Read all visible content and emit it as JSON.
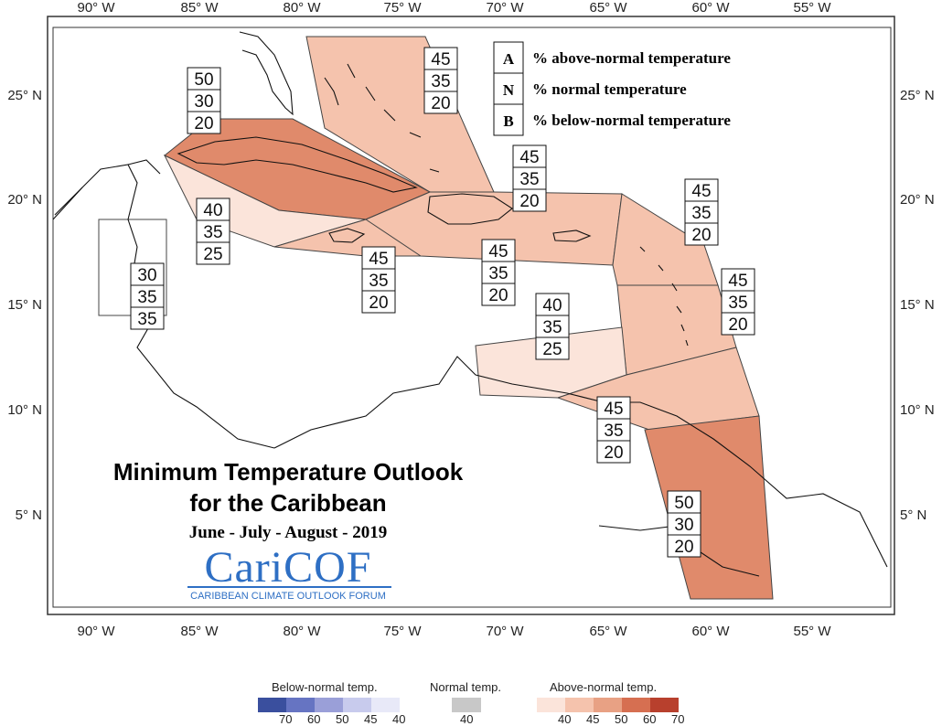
{
  "title_line1": "Minimum Temperature Outlook",
  "title_line2": "for the Caribbean",
  "subtitle": "June - July - August - 2019",
  "logo": {
    "name": "CariCOF",
    "tagline": "CARIBBEAN CLIMATE OUTLOOK FORUM"
  },
  "key": [
    {
      "letter": "A",
      "text": "% above-normal temperature"
    },
    {
      "letter": "N",
      "text": "% normal temperature"
    },
    {
      "letter": "B",
      "text": "% below-normal temperature"
    }
  ],
  "axes": {
    "longitudes": [
      "90° W",
      "85° W",
      "80° W",
      "75° W",
      "70° W",
      "65° W",
      "60° W",
      "55° W"
    ],
    "latitudes": [
      "25° N",
      "20° N",
      "15° N",
      "10° N",
      "5° N"
    ]
  },
  "regions": [
    {
      "id": "bahamas",
      "probs": [
        "45",
        "35",
        "20"
      ],
      "fill": "#f5c3ad"
    },
    {
      "id": "cuba",
      "probs": [
        "50",
        "30",
        "20"
      ],
      "fill": "#e08a6b"
    },
    {
      "id": "cayman",
      "probs": [
        "40",
        "35",
        "25"
      ],
      "fill": "#fbe4da"
    },
    {
      "id": "belize",
      "probs": [
        "30",
        "35",
        "35"
      ],
      "fill": "#ffffff"
    },
    {
      "id": "jamaica",
      "probs": [
        "45",
        "35",
        "20"
      ],
      "fill": "#f5c3ad"
    },
    {
      "id": "hispaniola",
      "probs": [
        "45",
        "35",
        "20"
      ],
      "fill": "#f5c3ad"
    },
    {
      "id": "turks-caicos",
      "probs": [
        "45",
        "35",
        "20"
      ],
      "fill": "#f5c3ad"
    },
    {
      "id": "leeward",
      "probs": [
        "45",
        "35",
        "20"
      ],
      "fill": "#f5c3ad"
    },
    {
      "id": "windward",
      "probs": [
        "45",
        "35",
        "20"
      ],
      "fill": "#f5c3ad"
    },
    {
      "id": "abc-islands",
      "probs": [
        "40",
        "35",
        "25"
      ],
      "fill": "#fbe4da"
    },
    {
      "id": "trinidad",
      "probs": [
        "45",
        "35",
        "20"
      ],
      "fill": "#f5c3ad"
    },
    {
      "id": "guianas",
      "probs": [
        "50",
        "30",
        "20"
      ],
      "fill": "#e08a6b"
    }
  ],
  "colorbar": {
    "below": {
      "title": "Below-normal temp.",
      "labels": [
        "70",
        "60",
        "50",
        "45",
        "40"
      ],
      "colors": [
        "#3a4f9e",
        "#6674c2",
        "#9a9fd8",
        "#c8cbed",
        "#e8e9f8"
      ]
    },
    "normal": {
      "title": "Normal temp.",
      "labels": [
        "40"
      ],
      "colors": [
        "#c8c8c8"
      ]
    },
    "above": {
      "title": "Above-normal temp.",
      "labels": [
        "40",
        "45",
        "50",
        "60",
        "70"
      ],
      "colors": [
        "#fbe4da",
        "#f5c3ad",
        "#e8a184",
        "#d66f51",
        "#b8402d"
      ]
    }
  }
}
